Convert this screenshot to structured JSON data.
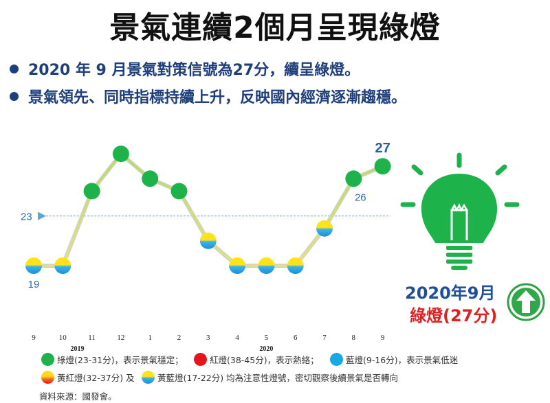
{
  "title": "景氣連續2個月呈現綠燈",
  "bullets": [
    "2020 年 9 月景氣對策信號為27分，續呈綠燈。",
    "景氣領先、同時指標持續上升，反映國內經濟逐漸趨穩。"
  ],
  "chart_data": {
    "type": "line",
    "categories": [
      "9",
      "10",
      "11",
      "12",
      "1",
      "2",
      "3",
      "4",
      "5",
      "6",
      "7",
      "8",
      "9"
    ],
    "year_labels": [
      {
        "label": "2019",
        "at_index": 1.5
      },
      {
        "label": "2020",
        "at_index": 8
      }
    ],
    "values": [
      19,
      19,
      25,
      28,
      26,
      25,
      21,
      19,
      19,
      19,
      22,
      26,
      27
    ],
    "signal": [
      "yellow-blue",
      "yellow-blue",
      "green",
      "green",
      "green",
      "green",
      "yellow-blue",
      "yellow-blue",
      "yellow-blue",
      "yellow-blue",
      "yellow-blue",
      "green",
      "green"
    ],
    "threshold": {
      "value": 23,
      "label": "23"
    },
    "data_labels": [
      {
        "index": 0,
        "text": "19",
        "position": "below",
        "color": "#2b6cb0",
        "bold": false
      },
      {
        "index": 11,
        "text": "26",
        "position": "below",
        "color": "#2b6cb0",
        "bold": false
      },
      {
        "index": 12,
        "text": "27",
        "position": "above",
        "color": "#2a5aa5",
        "bold": true
      }
    ],
    "ylim": [
      15,
      30
    ]
  },
  "side": {
    "date": "2020年9月",
    "light": "綠燈(27分)"
  },
  "legend": [
    {
      "style": "green",
      "text": "綠燈(23-31分)，表示景氣穩定；"
    },
    {
      "style": "red",
      "text": "紅燈(38-45分)，表示熱絡；"
    },
    {
      "style": "blue",
      "text": "藍燈(9-16分)，表示景氣低迷"
    },
    {
      "style": "yellow-red",
      "text": "黃紅燈(32-37分) 及"
    },
    {
      "style": "yellow-blue",
      "text": "黃藍燈(17-22分) 均為注意性燈號，密切觀察後續景氣是否轉向"
    }
  ],
  "source": "資料來源：國發會。",
  "colors": {
    "green": "#1eb24b",
    "red": "#e8141b",
    "blue": "#1aa7e8",
    "title": "#111111",
    "bullet": "#1f3f7a"
  }
}
